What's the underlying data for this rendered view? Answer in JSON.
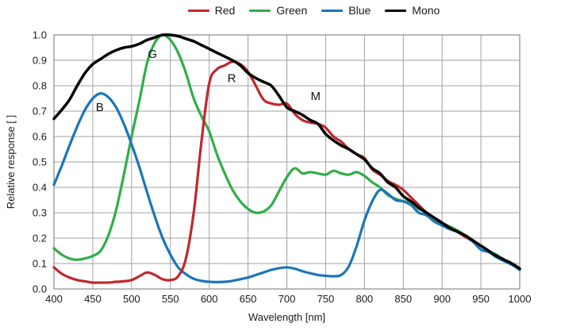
{
  "chart_data": {
    "type": "line",
    "title": "",
    "xlabel": "Wavelength [nm]",
    "ylabel": "Relative response [ ]",
    "xlim": [
      400,
      1000
    ],
    "ylim": [
      0.0,
      1.0
    ],
    "x_ticks": [
      400,
      450,
      500,
      550,
      600,
      650,
      700,
      750,
      800,
      850,
      900,
      950,
      1000
    ],
    "y_ticks": [
      0.0,
      0.1,
      0.2,
      0.3,
      0.4,
      0.5,
      0.6,
      0.7,
      0.8,
      0.9,
      1.0
    ],
    "x_start": 400,
    "x_step": 10,
    "grid": true,
    "legend_position": "top-center",
    "grid_color": "#a0a0a0",
    "series": [
      {
        "name": "Red",
        "color": "#c1272d",
        "values": [
          0.085,
          0.06,
          0.045,
          0.035,
          0.03,
          0.025,
          0.025,
          0.025,
          0.028,
          0.03,
          0.035,
          0.05,
          0.065,
          0.055,
          0.038,
          0.035,
          0.05,
          0.12,
          0.3,
          0.58,
          0.81,
          0.865,
          0.88,
          0.895,
          0.885,
          0.855,
          0.8,
          0.745,
          0.73,
          0.725,
          0.73,
          0.69,
          0.665,
          0.655,
          0.65,
          0.635,
          0.6,
          0.58,
          0.55,
          0.53,
          0.515,
          0.47,
          0.45,
          0.425,
          0.41,
          0.39,
          0.36,
          0.33,
          0.3,
          0.28,
          0.26,
          0.24,
          0.225,
          0.205,
          0.19,
          0.17,
          0.15,
          0.13,
          0.115,
          0.1,
          0.08
        ]
      },
      {
        "name": "Green",
        "color": "#2fae49",
        "values": [
          0.16,
          0.135,
          0.12,
          0.115,
          0.12,
          0.13,
          0.15,
          0.21,
          0.31,
          0.45,
          0.6,
          0.74,
          0.89,
          0.97,
          1.0,
          0.98,
          0.93,
          0.85,
          0.75,
          0.68,
          0.62,
          0.53,
          0.455,
          0.39,
          0.345,
          0.315,
          0.3,
          0.305,
          0.33,
          0.385,
          0.44,
          0.475,
          0.455,
          0.46,
          0.455,
          0.45,
          0.465,
          0.455,
          0.45,
          0.46,
          0.445,
          0.42,
          0.4,
          0.37,
          0.355,
          0.345,
          0.34,
          0.315,
          0.3,
          0.275,
          0.26,
          0.245,
          0.23,
          0.21,
          0.19,
          0.17,
          0.15,
          0.135,
          0.115,
          0.1,
          0.08
        ]
      },
      {
        "name": "Blue",
        "color": "#1b75bb",
        "values": [
          0.41,
          0.485,
          0.565,
          0.64,
          0.705,
          0.75,
          0.77,
          0.755,
          0.715,
          0.65,
          0.57,
          0.48,
          0.38,
          0.285,
          0.2,
          0.135,
          0.085,
          0.058,
          0.04,
          0.032,
          0.028,
          0.027,
          0.028,
          0.032,
          0.038,
          0.045,
          0.055,
          0.065,
          0.075,
          0.082,
          0.085,
          0.08,
          0.07,
          0.062,
          0.055,
          0.052,
          0.05,
          0.055,
          0.09,
          0.17,
          0.27,
          0.345,
          0.39,
          0.375,
          0.35,
          0.345,
          0.33,
          0.3,
          0.29,
          0.265,
          0.25,
          0.235,
          0.225,
          0.205,
          0.185,
          0.155,
          0.145,
          0.125,
          0.11,
          0.095,
          0.075
        ]
      },
      {
        "name": "Mono",
        "color": "#000000",
        "values": [
          0.67,
          0.705,
          0.745,
          0.8,
          0.85,
          0.885,
          0.905,
          0.925,
          0.94,
          0.95,
          0.955,
          0.965,
          0.98,
          0.99,
          1.0,
          1.0,
          0.995,
          0.985,
          0.975,
          0.96,
          0.945,
          0.93,
          0.915,
          0.9,
          0.88,
          0.85,
          0.83,
          0.815,
          0.8,
          0.76,
          0.715,
          0.7,
          0.685,
          0.665,
          0.65,
          0.61,
          0.585,
          0.565,
          0.55,
          0.53,
          0.51,
          0.475,
          0.455,
          0.42,
          0.4,
          0.365,
          0.345,
          0.32,
          0.3,
          0.28,
          0.26,
          0.24,
          0.225,
          0.21,
          0.19,
          0.17,
          0.15,
          0.13,
          0.115,
          0.1,
          0.08
        ]
      }
    ],
    "curve_labels": [
      {
        "text": "G",
        "x": 527,
        "y": 0.925
      },
      {
        "text": "B",
        "x": 459,
        "y": 0.715
      },
      {
        "text": "R",
        "x": 629,
        "y": 0.83
      },
      {
        "text": "M",
        "x": 737,
        "y": 0.76
      }
    ]
  }
}
